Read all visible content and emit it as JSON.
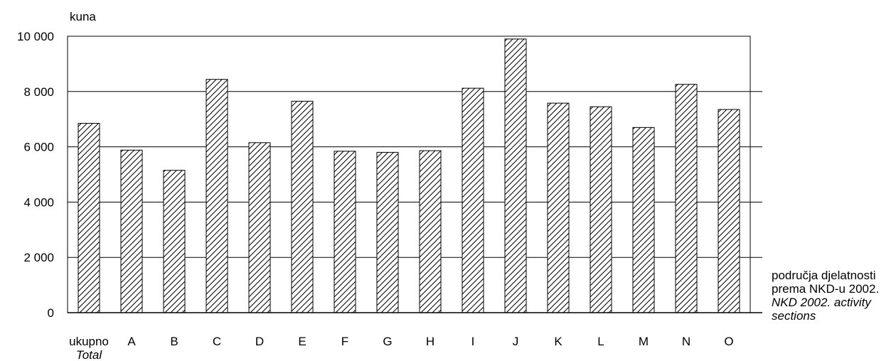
{
  "chart_data": {
    "type": "bar",
    "ylabel": "kuna",
    "xlabel": [
      "područja djelatnosti",
      "prema NKD-u 2002.",
      "NKD 2002. activity",
      "sections"
    ],
    "categories": [
      "ukupno",
      "A",
      "B",
      "C",
      "D",
      "E",
      "F",
      "G",
      "H",
      "I",
      "J",
      "K",
      "L",
      "M",
      "N",
      "O"
    ],
    "category_sublabel": "Total",
    "values": [
      6850,
      5880,
      5150,
      8440,
      6150,
      7650,
      5840,
      5800,
      5860,
      8120,
      9900,
      7580,
      7450,
      6700,
      8260,
      7350
    ],
    "yticks": [
      "0",
      "2 000",
      "4 000",
      "6 000",
      "8 000",
      "10 000"
    ],
    "ylim": [
      0,
      10000
    ],
    "grid": true,
    "bar_fill": "diagonal-hatch"
  }
}
